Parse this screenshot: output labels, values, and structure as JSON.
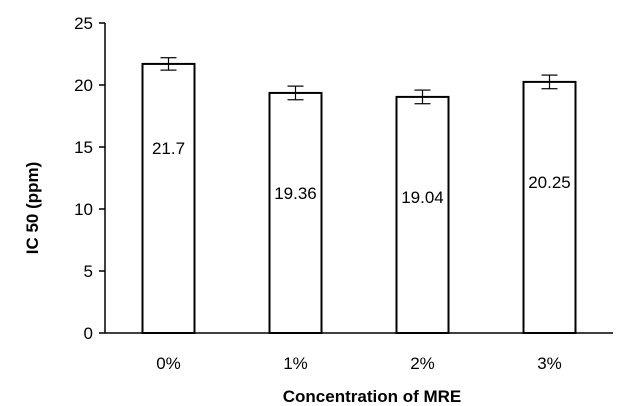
{
  "chart_data": {
    "type": "bar",
    "title": "",
    "xlabel": "Concentration of MRE",
    "ylabel": "IC  50 (ppm)",
    "categories": [
      "0%",
      "1%",
      "2%",
      "3%"
    ],
    "values": [
      21.7,
      19.36,
      19.04,
      20.25
    ],
    "value_labels": [
      "21.7",
      "19.36",
      "19.04",
      "20.25"
    ],
    "error": [
      0.5,
      0.55,
      0.55,
      0.55
    ],
    "ylim": [
      0,
      25
    ],
    "yticks": [
      0,
      5,
      10,
      15,
      20,
      25
    ],
    "ytick_labels": [
      "0",
      "5",
      "10",
      "15",
      "20",
      "25"
    ],
    "grid": false,
    "legend": "none",
    "bar_fill": "#ffffff",
    "bar_stroke": "#000000"
  }
}
